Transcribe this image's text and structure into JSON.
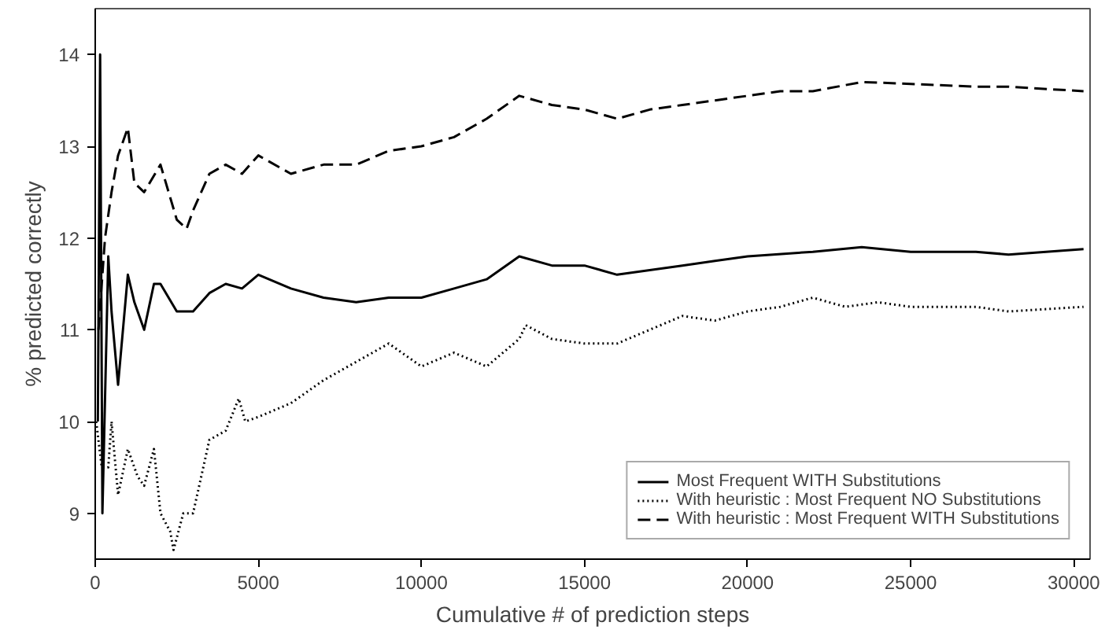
{
  "chart_data": {
    "type": "line",
    "xlabel": "Cumulative # of prediction steps",
    "ylabel": "% predicted correctly",
    "xlim": [
      0,
      30500
    ],
    "ylim": [
      8.5,
      14.5
    ],
    "xticks": [
      0,
      5000,
      10000,
      15000,
      20000,
      25000,
      30000
    ],
    "yticks": [
      9,
      10,
      11,
      12,
      13,
      14
    ],
    "grid": false,
    "legend": "bottom right",
    "marker": "none",
    "series": [
      {
        "name": "Most Frequent WITH Substitutions",
        "color": "#000000",
        "line_style": "solid",
        "x": [
          80,
          150,
          220,
          400,
          500,
          700,
          1000,
          1200,
          1500,
          1800,
          2000,
          2500,
          3000,
          3500,
          4000,
          4500,
          5000,
          6000,
          7000,
          8000,
          9000,
          10000,
          11000,
          12000,
          13000,
          14000,
          15000,
          16000,
          17000,
          18000,
          19000,
          20000,
          22000,
          23500,
          25000,
          27000,
          28000,
          30300
        ],
        "values": [
          10.0,
          14.0,
          9.0,
          11.8,
          11.2,
          10.4,
          11.6,
          11.3,
          11.0,
          11.5,
          11.5,
          11.2,
          11.2,
          11.4,
          11.5,
          11.45,
          11.6,
          11.45,
          11.35,
          11.3,
          11.35,
          11.35,
          11.45,
          11.55,
          11.8,
          11.7,
          11.7,
          11.6,
          11.65,
          11.7,
          11.75,
          11.8,
          11.85,
          11.9,
          11.85,
          11.85,
          11.82,
          11.88
        ]
      },
      {
        "name": "With heuristic : Most Frequent NO Substitutions",
        "color": "#000000",
        "line_style": "dotted",
        "x": [
          30,
          200,
          400,
          500,
          700,
          1000,
          1300,
          1500,
          1800,
          2000,
          2300,
          2400,
          2700,
          3000,
          3500,
          4000,
          4400,
          4600,
          5000,
          6000,
          7000,
          8000,
          9000,
          10000,
          11000,
          12000,
          13000,
          13200,
          14000,
          15000,
          16000,
          17000,
          18000,
          19000,
          20000,
          21000,
          22000,
          23000,
          24000,
          25000,
          27000,
          28000,
          30300
        ],
        "values": [
          10.0,
          9.5,
          9.5,
          10.0,
          9.2,
          9.7,
          9.4,
          9.3,
          9.7,
          9.0,
          8.8,
          8.6,
          9.0,
          9.0,
          9.8,
          9.9,
          10.25,
          10.0,
          10.05,
          10.2,
          10.45,
          10.65,
          10.85,
          10.6,
          10.75,
          10.6,
          10.9,
          11.05,
          10.9,
          10.85,
          10.85,
          11.0,
          11.15,
          11.1,
          11.2,
          11.25,
          11.35,
          11.25,
          11.3,
          11.25,
          11.25,
          11.2,
          11.25
        ]
      },
      {
        "name": "With heuristic : Most Frequent WITH Substitutions",
        "color": "#000000",
        "line_style": "dashed",
        "x": [
          100,
          300,
          500,
          700,
          1000,
          1200,
          1500,
          2000,
          2500,
          2800,
          3000,
          3500,
          4000,
          4500,
          5000,
          6000,
          7000,
          8000,
          9000,
          10000,
          11000,
          12000,
          13000,
          14000,
          15000,
          16000,
          17000,
          18000,
          19000,
          20000,
          21000,
          22000,
          23500,
          25000,
          27000,
          28000,
          30300
        ],
        "values": [
          11.0,
          12.0,
          12.5,
          12.9,
          13.2,
          12.6,
          12.5,
          12.8,
          12.2,
          12.1,
          12.3,
          12.7,
          12.8,
          12.7,
          12.9,
          12.7,
          12.8,
          12.8,
          12.95,
          13.0,
          13.1,
          13.3,
          13.55,
          13.45,
          13.4,
          13.3,
          13.4,
          13.45,
          13.5,
          13.55,
          13.6,
          13.6,
          13.7,
          13.68,
          13.65,
          13.65,
          13.6
        ]
      }
    ]
  }
}
